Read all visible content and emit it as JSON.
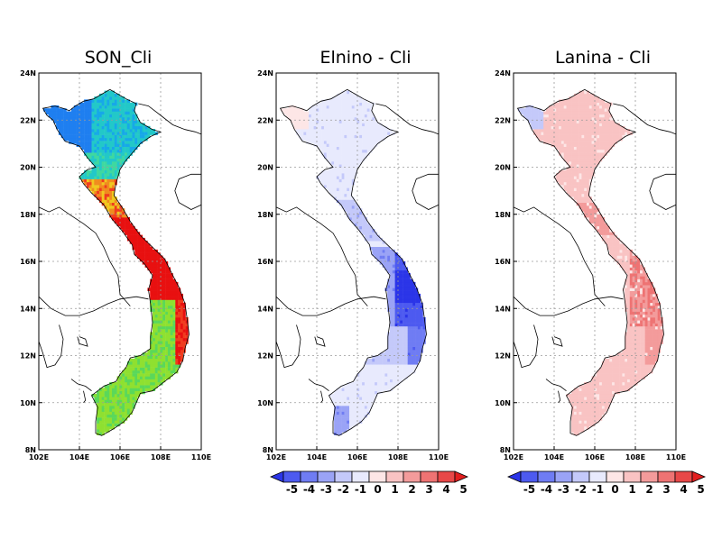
{
  "panels": [
    {
      "title": "SON_Cli",
      "variant": "cli",
      "has_colorbar": false
    },
    {
      "title": "Elnino - Cli",
      "variant": "elnino",
      "has_colorbar": true
    },
    {
      "title": "Lanina - Cli",
      "variant": "lanina",
      "has_colorbar": true
    }
  ],
  "axes": {
    "x_ticks": [
      "102E",
      "104E",
      "106E",
      "108E",
      "110E"
    ],
    "y_ticks": [
      "8N",
      "10N",
      "12N",
      "14N",
      "16N",
      "18N",
      "20N",
      "22N",
      "24N"
    ],
    "xlim": [
      102,
      110
    ],
    "ylim": [
      8,
      24
    ]
  },
  "colorbar": {
    "labels": [
      "-5",
      "-4",
      "-3",
      "-2",
      "-1",
      "0",
      "1",
      "2",
      "3",
      "4",
      "5"
    ],
    "colors": [
      "#2b35e8",
      "#4d5af0",
      "#6f7cf3",
      "#9aa3f6",
      "#c4c9fa",
      "#e8eafd",
      "#fde6e6",
      "#f9c3c3",
      "#f39b9b",
      "#ee7373",
      "#e84848",
      "#e21e1e"
    ]
  },
  "palette": {
    "cli": [
      "#1f7ff0",
      "#17a8e8",
      "#22c8c8",
      "#3fd8a0",
      "#5ad85a",
      "#8fe030",
      "#c8e41e",
      "#f0c81e",
      "#f08c1e",
      "#f03c1e",
      "#e81010"
    ],
    "neg": [
      "#2b35e8",
      "#4d5af0",
      "#6f7cf3",
      "#9aa3f6",
      "#c4c9fa",
      "#e8eafd"
    ],
    "pos": [
      "#fde6e6",
      "#f9c3c3",
      "#f39b9b",
      "#ee7373",
      "#e84848"
    ]
  }
}
